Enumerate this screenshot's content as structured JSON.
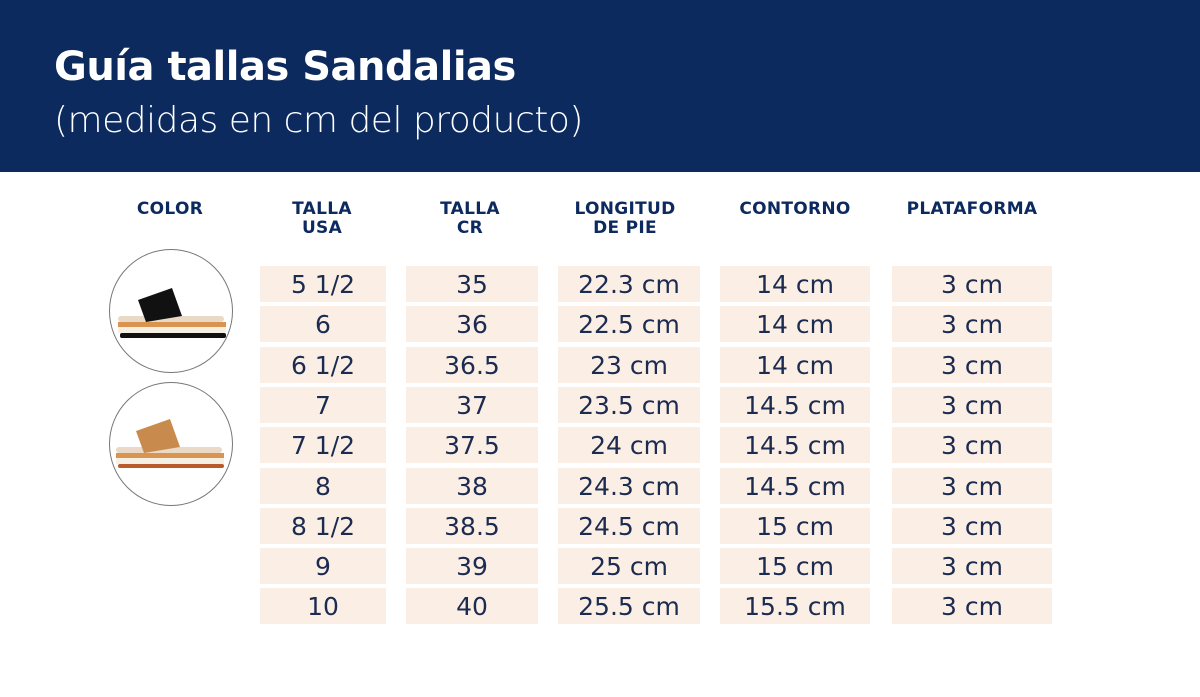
{
  "header": {
    "title": "Guía tallas Sandalias",
    "subtitle": "(medidas en cm del producto)"
  },
  "columns": [
    "COLOR",
    "TALLA USA",
    "TALLA CR",
    "LONGITUD DE PIE",
    "CONTORNO",
    "PLATAFORMA"
  ],
  "colors": [
    {
      "name": "black",
      "hex": "#111111"
    },
    {
      "name": "tan",
      "hex": "#c98a4e"
    }
  ],
  "rows": [
    [
      "5 1/2",
      "35",
      "22.3 cm",
      "14 cm",
      "3 cm"
    ],
    [
      "6",
      "36",
      "22.5 cm",
      "14 cm",
      "3 cm"
    ],
    [
      "6 1/2",
      "36.5",
      "23 cm",
      "14 cm",
      "3 cm"
    ],
    [
      "7",
      "37",
      "23.5 cm",
      "14.5 cm",
      "3 cm"
    ],
    [
      "7 1/2",
      "37.5",
      "24 cm",
      "14.5 cm",
      "3 cm"
    ],
    [
      "8",
      "38",
      "24.3 cm",
      "14.5 cm",
      "3 cm"
    ],
    [
      "8 1/2",
      "38.5",
      "24.5 cm",
      "15 cm",
      "3 cm"
    ],
    [
      "9",
      "39",
      "25 cm",
      "15 cm",
      "3 cm"
    ],
    [
      "10",
      "40",
      "25.5 cm",
      "15.5 cm",
      "3 cm"
    ]
  ]
}
